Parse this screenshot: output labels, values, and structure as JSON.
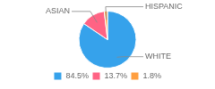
{
  "chart_data": {
    "type": "pie",
    "categories": [
      "WHITE",
      "ASIAN",
      "HISPANIC"
    ],
    "values": [
      84.5,
      13.7,
      1.8
    ],
    "value_labels": [
      "84.5%",
      "13.7%",
      "1.8%"
    ],
    "legend": "bottom"
  }
}
